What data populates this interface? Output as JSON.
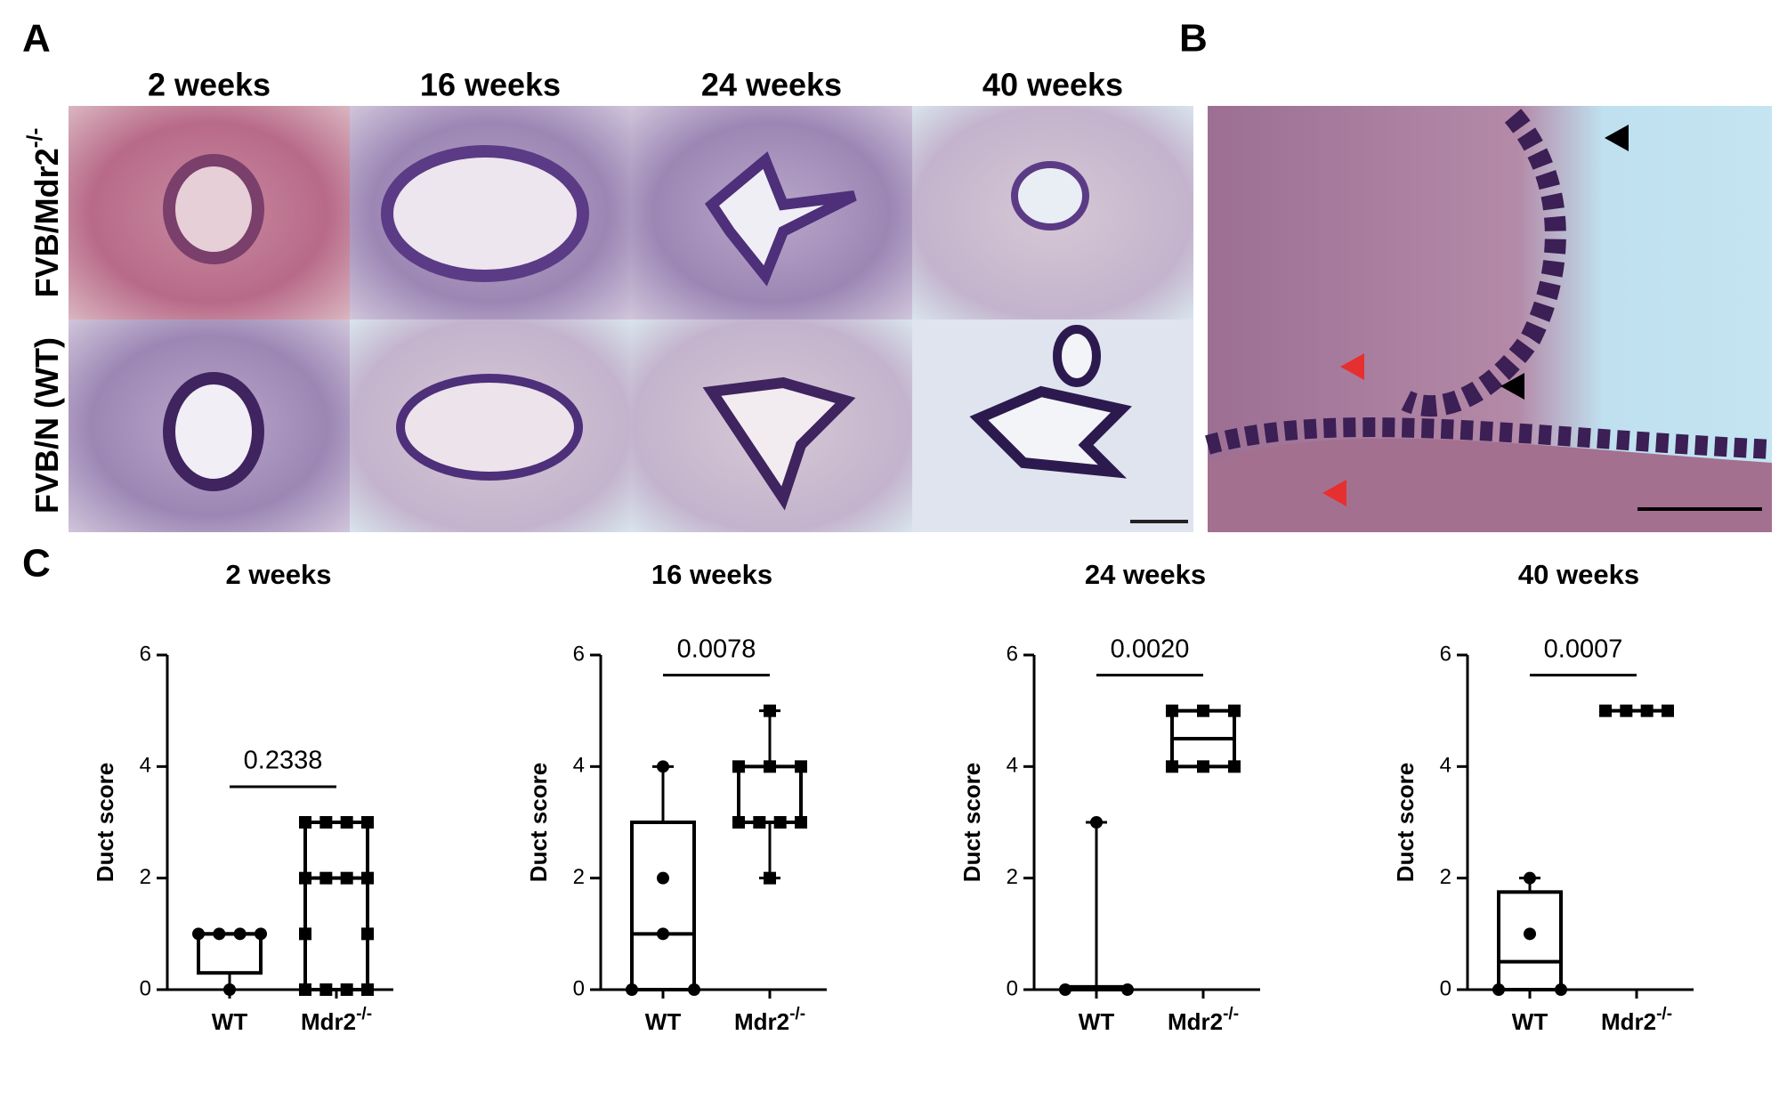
{
  "panels": {
    "a": "A",
    "b": "B",
    "c": "C"
  },
  "histology": {
    "columns": [
      "2 weeks",
      "16 weeks",
      "24 weeks",
      "40 weeks"
    ],
    "rows": [
      {
        "text": "FVB/Mdr2",
        "sup": "-/-"
      },
      {
        "text": "FVB/N (WT)"
      }
    ]
  },
  "chart_data": [
    {
      "type": "box",
      "title": "2 weeks",
      "ylabel": "Duct score",
      "ylim": [
        0,
        6
      ],
      "yticks": [
        0,
        2,
        4,
        6
      ],
      "annotation": "0.2338",
      "color": "#000000",
      "groups": [
        {
          "name": "WT",
          "min": 0,
          "q1": 0.3,
          "median": 1,
          "q3": 1,
          "max": 1,
          "points": [
            1,
            1,
            1,
            1,
            0
          ]
        },
        {
          "name": "Mdr2",
          "sup": "-/-",
          "min": 0,
          "q1": 0,
          "median": 2,
          "q3": 3,
          "max": 3,
          "points": [
            3,
            3,
            3,
            3,
            2,
            2,
            2,
            2,
            1,
            1,
            0,
            0,
            0,
            0
          ]
        }
      ]
    },
    {
      "type": "box",
      "title": "16 weeks",
      "ylabel": "Duct score",
      "ylim": [
        0,
        6
      ],
      "yticks": [
        0,
        2,
        4,
        6
      ],
      "annotation": "0.0078",
      "color": "#000000",
      "groups": [
        {
          "name": "WT",
          "min": 0,
          "q1": 0,
          "median": 1,
          "q3": 3,
          "max": 4,
          "points": [
            4,
            2,
            1,
            0,
            0
          ]
        },
        {
          "name": "Mdr2",
          "sup": "-/-",
          "min": 2,
          "q1": 3,
          "median": 3,
          "q3": 4,
          "max": 5,
          "points": [
            5,
            4,
            4,
            4,
            3,
            3,
            3,
            3,
            2
          ]
        }
      ]
    },
    {
      "type": "box",
      "title": "24 weeks",
      "ylabel": "Duct score",
      "ylim": [
        0,
        6
      ],
      "yticks": [
        0,
        2,
        4,
        6
      ],
      "annotation": "0.0020",
      "color": "#000000",
      "groups": [
        {
          "name": "WT",
          "min": 0,
          "q1": 0,
          "median": 0,
          "q3": 0.05,
          "max": 3,
          "points": [
            3,
            0,
            0
          ]
        },
        {
          "name": "Mdr2",
          "sup": "-/-",
          "min": 4,
          "q1": 4,
          "median": 4.5,
          "q3": 5,
          "max": 5,
          "points": [
            5,
            5,
            5,
            4,
            4,
            4
          ]
        }
      ]
    },
    {
      "type": "box",
      "title": "40 weeks",
      "ylabel": "Duct score",
      "ylim": [
        0,
        6
      ],
      "yticks": [
        0,
        2,
        4,
        6
      ],
      "annotation": "0.0007",
      "color": "#000000",
      "groups": [
        {
          "name": "WT",
          "min": 0,
          "q1": 0,
          "median": 0.5,
          "q3": 1.75,
          "max": 2,
          "points": [
            2,
            1,
            0,
            0
          ]
        },
        {
          "name": "Mdr2",
          "sup": "-/-",
          "min": 5,
          "q1": 5,
          "median": 5,
          "q3": 5,
          "max": 5,
          "points": [
            5,
            5,
            5,
            5
          ]
        }
      ]
    }
  ]
}
